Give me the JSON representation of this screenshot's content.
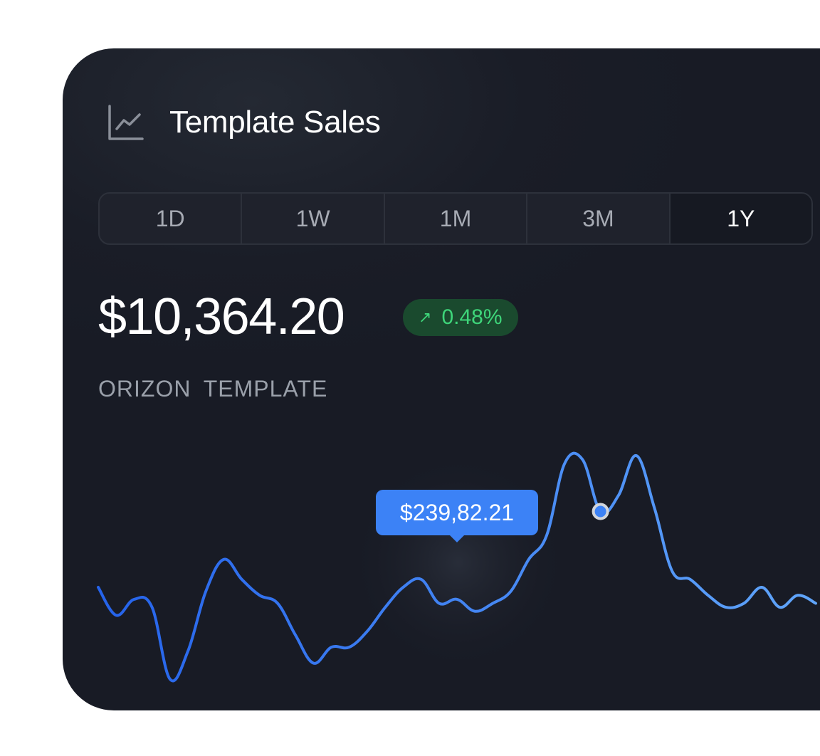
{
  "card": {
    "title": "Template Sales",
    "title_icon": "line-chart-icon",
    "range_tabs": [
      {
        "label": "1D",
        "active": false
      },
      {
        "label": "1W",
        "active": false
      },
      {
        "label": "1M",
        "active": false
      },
      {
        "label": "3M",
        "active": false
      },
      {
        "label": "1Y",
        "active": true
      }
    ],
    "price": "$10,364.20",
    "change": {
      "icon": "arrow-up-right-icon",
      "arrow": "↗",
      "value": "0.48%"
    },
    "subtitle": "ORIZON  TEMPLATE"
  },
  "chart_data": {
    "type": "line",
    "grid": false,
    "legend": "none",
    "colors": {
      "start": "#2563eb",
      "end": "#60a5fa",
      "marker_fill": "#3c82f6",
      "marker_ring": "#d1d5db"
    },
    "tooltip": {
      "label": "$239,82.21",
      "index": 28
    },
    "values": [
      1030,
      960,
      1000,
      980,
      800,
      870,
      1020,
      1100,
      1050,
      1010,
      990,
      910,
      840,
      880,
      880,
      920,
      980,
      1030,
      1050,
      990,
      1000,
      970,
      990,
      1020,
      1100,
      1160,
      1340,
      1350,
      1220,
      1260,
      1360,
      1230,
      1070,
      1050,
      1010,
      980,
      990,
      1030,
      980,
      1010,
      990
    ]
  }
}
